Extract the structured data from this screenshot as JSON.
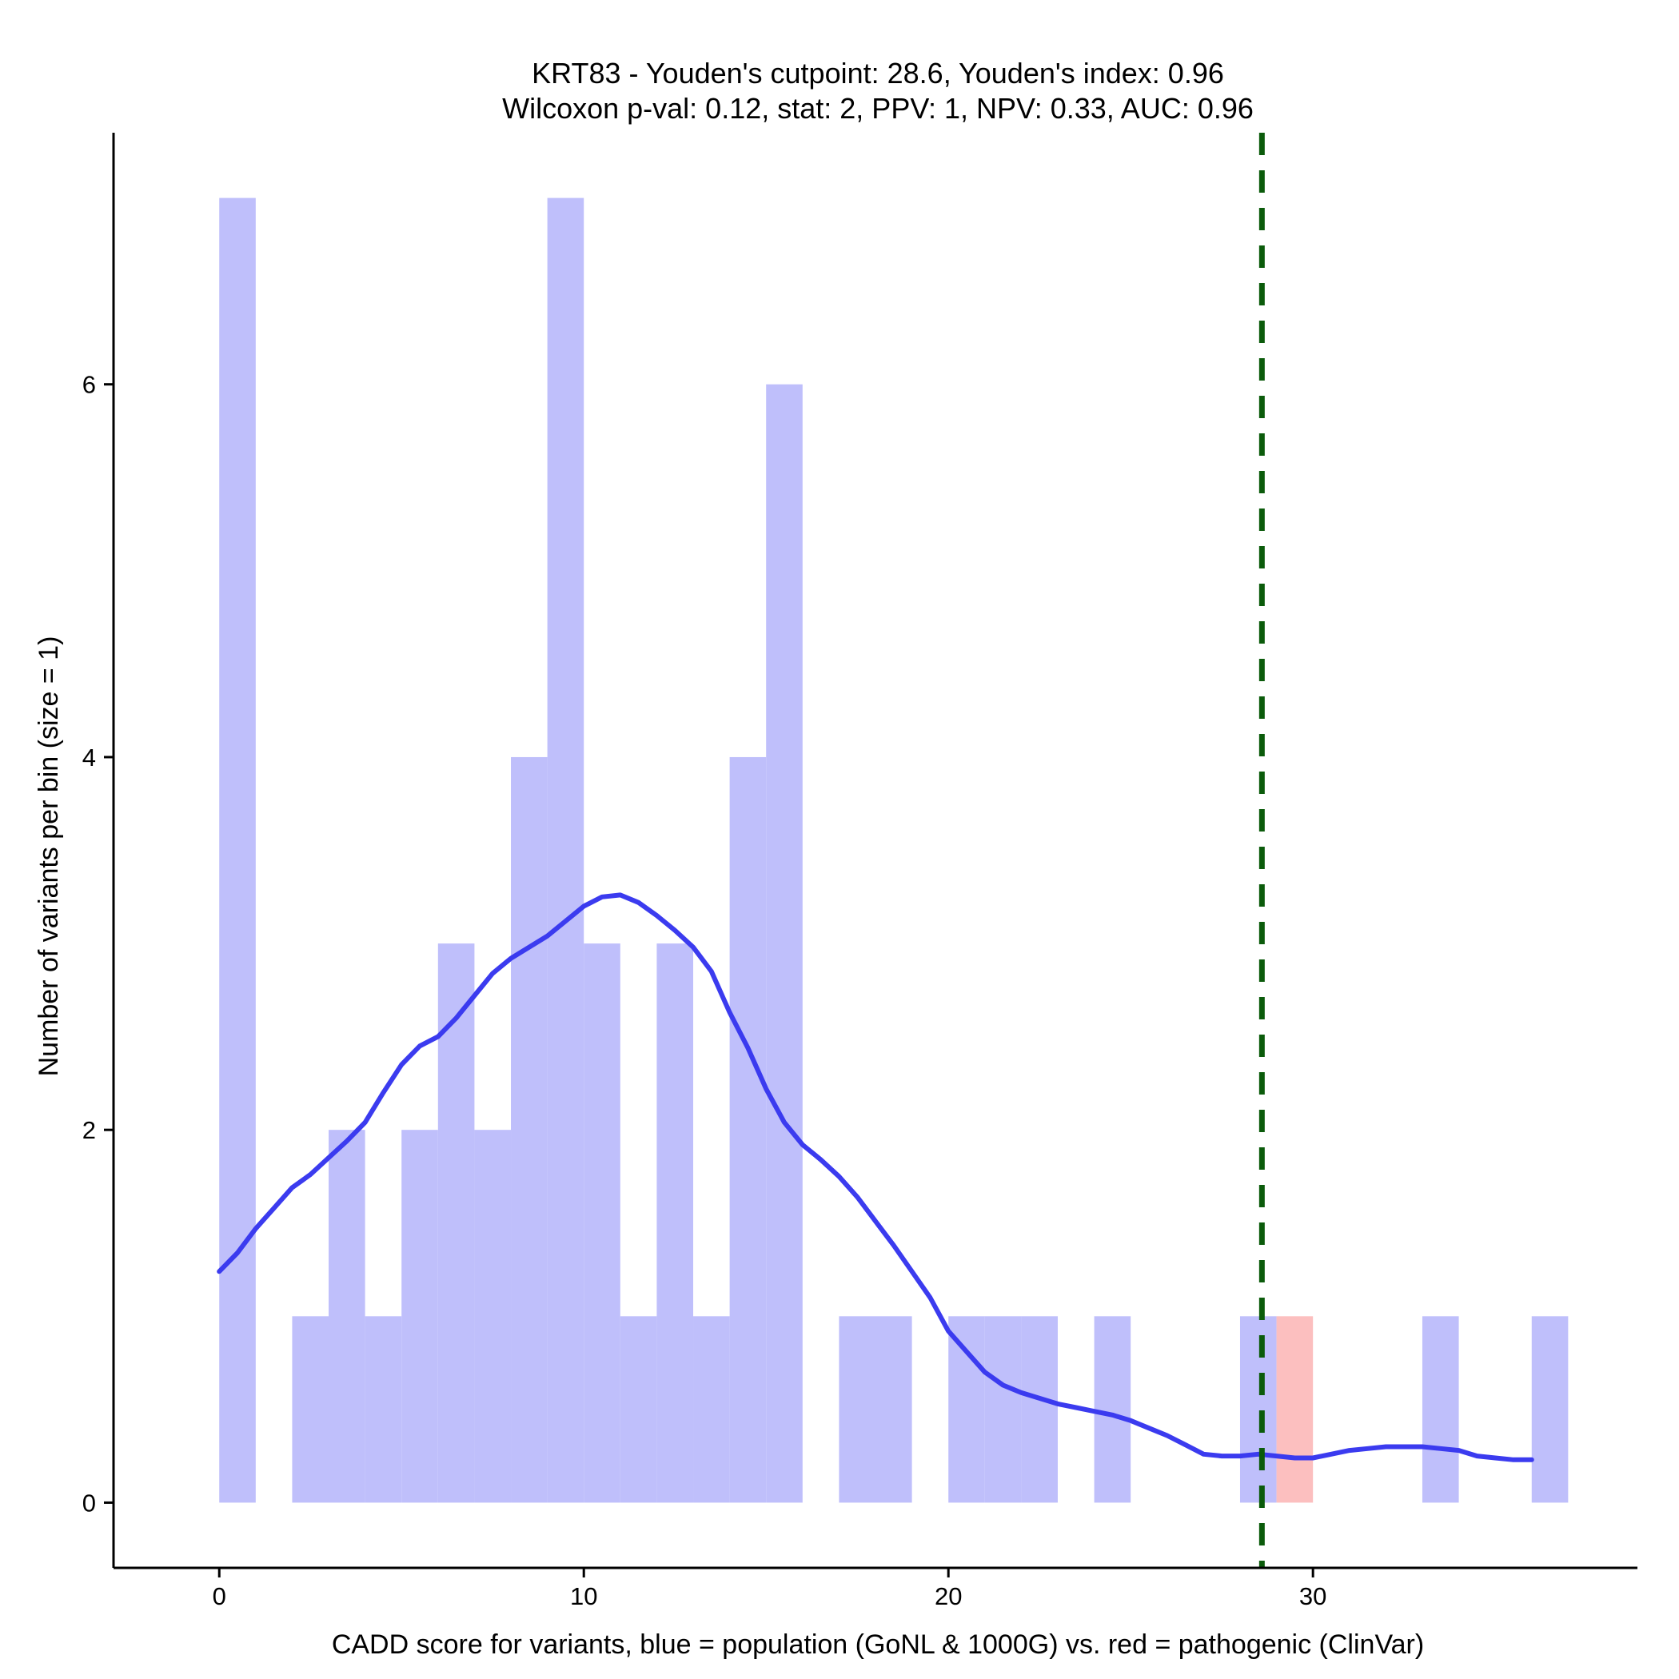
{
  "chart_data": {
    "type": "bar",
    "title_line1": "KRT83 - Youden's cutpoint: 28.6, Youden's index: 0.96",
    "title_line2": "Wilcoxon p-val: 0.12, stat: 2, PPV: 1, NPV: 0.33, AUC: 0.96",
    "xlabel": "CADD score for variants, blue = population (GoNL & 1000G) vs. red = pathogenic (ClinVar)",
    "ylabel": "Number of variants per bin (size = 1)",
    "xlim": [
      -2.9,
      38.9
    ],
    "ylim": [
      -0.35,
      7.35
    ],
    "x_ticks": [
      0,
      10,
      20,
      30
    ],
    "y_ticks": [
      0,
      2,
      4,
      6
    ],
    "grid": false,
    "bin_width": 1,
    "cutpoint": 28.6,
    "colors": {
      "population": "#bfbffb",
      "pathogenic": "#fcbfbf",
      "density": "#3b3bef",
      "cutpoint": "#0b5b0b"
    },
    "series": [
      {
        "name": "population",
        "bins": [
          {
            "x": 0,
            "count": 7
          },
          {
            "x": 2,
            "count": 1
          },
          {
            "x": 3,
            "count": 2
          },
          {
            "x": 4,
            "count": 1
          },
          {
            "x": 5,
            "count": 2
          },
          {
            "x": 6,
            "count": 3
          },
          {
            "x": 7,
            "count": 2
          },
          {
            "x": 8,
            "count": 4
          },
          {
            "x": 9,
            "count": 7
          },
          {
            "x": 10,
            "count": 3
          },
          {
            "x": 11,
            "count": 1
          },
          {
            "x": 12,
            "count": 3
          },
          {
            "x": 13,
            "count": 1
          },
          {
            "x": 14,
            "count": 4
          },
          {
            "x": 15,
            "count": 6
          },
          {
            "x": 17,
            "count": 1
          },
          {
            "x": 18,
            "count": 1
          },
          {
            "x": 20,
            "count": 1
          },
          {
            "x": 21,
            "count": 1
          },
          {
            "x": 22,
            "count": 1
          },
          {
            "x": 24,
            "count": 1
          },
          {
            "x": 28,
            "count": 1
          },
          {
            "x": 33,
            "count": 1
          },
          {
            "x": 36,
            "count": 1
          }
        ]
      },
      {
        "name": "pathogenic",
        "bins": [
          {
            "x": 29,
            "count": 1
          }
        ]
      }
    ],
    "density_curve": [
      [
        0,
        1.24
      ],
      [
        0.5,
        1.34
      ],
      [
        1,
        1.47
      ],
      [
        1.5,
        1.58
      ],
      [
        2,
        1.69
      ],
      [
        2.5,
        1.76
      ],
      [
        3,
        1.85
      ],
      [
        3.5,
        1.94
      ],
      [
        4,
        2.04
      ],
      [
        4.5,
        2.2
      ],
      [
        5,
        2.35
      ],
      [
        5.5,
        2.45
      ],
      [
        6,
        2.5
      ],
      [
        6.5,
        2.6
      ],
      [
        7,
        2.72
      ],
      [
        7.5,
        2.84
      ],
      [
        8,
        2.92
      ],
      [
        8.5,
        2.98
      ],
      [
        9,
        3.04
      ],
      [
        9.5,
        3.12
      ],
      [
        10,
        3.2
      ],
      [
        10.5,
        3.25
      ],
      [
        11,
        3.26
      ],
      [
        11.5,
        3.22
      ],
      [
        12,
        3.15
      ],
      [
        12.5,
        3.07
      ],
      [
        13,
        2.98
      ],
      [
        13.5,
        2.85
      ],
      [
        14,
        2.63
      ],
      [
        14.5,
        2.44
      ],
      [
        15,
        2.22
      ],
      [
        15.5,
        2.04
      ],
      [
        16,
        1.92
      ],
      [
        16.5,
        1.84
      ],
      [
        17,
        1.75
      ],
      [
        17.5,
        1.64
      ],
      [
        18,
        1.51
      ],
      [
        18.5,
        1.38
      ],
      [
        19,
        1.24
      ],
      [
        19.5,
        1.1
      ],
      [
        20,
        0.92
      ],
      [
        20.5,
        0.81
      ],
      [
        21,
        0.7
      ],
      [
        21.5,
        0.63
      ],
      [
        22,
        0.59
      ],
      [
        22.5,
        0.56
      ],
      [
        23,
        0.53
      ],
      [
        23.5,
        0.51
      ],
      [
        24,
        0.49
      ],
      [
        24.5,
        0.47
      ],
      [
        25,
        0.44
      ],
      [
        25.5,
        0.4
      ],
      [
        26,
        0.36
      ],
      [
        26.5,
        0.31
      ],
      [
        27,
        0.26
      ],
      [
        27.5,
        0.25
      ],
      [
        28,
        0.25
      ],
      [
        28.5,
        0.26
      ],
      [
        29,
        0.25
      ],
      [
        29.5,
        0.24
      ],
      [
        30,
        0.24
      ],
      [
        30.5,
        0.26
      ],
      [
        31,
        0.28
      ],
      [
        31.5,
        0.29
      ],
      [
        32,
        0.3
      ],
      [
        32.5,
        0.3
      ],
      [
        33,
        0.3
      ],
      [
        33.5,
        0.29
      ],
      [
        34,
        0.28
      ],
      [
        34.5,
        0.25
      ],
      [
        35,
        0.24
      ],
      [
        35.5,
        0.23
      ],
      [
        36,
        0.23
      ]
    ]
  }
}
